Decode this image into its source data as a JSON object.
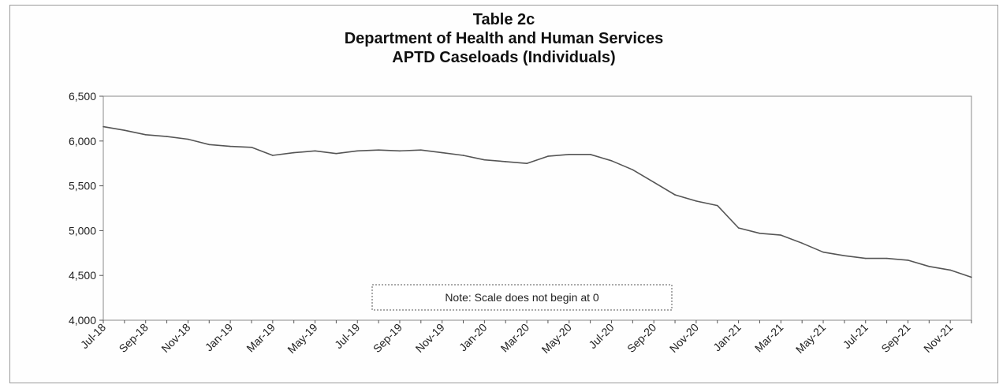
{
  "chart_data": {
    "type": "line",
    "title_lines": [
      "Table 2c",
      "Department of Health and Human Services",
      "APTD Caseloads (Individuals)"
    ],
    "xlabel": "",
    "ylabel": "",
    "ylim": [
      4000,
      6500
    ],
    "yticks": [
      4000,
      4500,
      5000,
      5500,
      6000,
      6500
    ],
    "ytick_labels": [
      "4,000",
      "4,500",
      "5,000",
      "5,500",
      "6,000",
      "6,500"
    ],
    "x": [
      "Jul-18",
      "Aug-18",
      "Sep-18",
      "Oct-18",
      "Nov-18",
      "Dec-18",
      "Jan-19",
      "Feb-19",
      "Mar-19",
      "Apr-19",
      "May-19",
      "Jun-19",
      "Jul-19",
      "Aug-19",
      "Sep-19",
      "Oct-19",
      "Nov-19",
      "Dec-19",
      "Jan-20",
      "Feb-20",
      "Mar-20",
      "Apr-20",
      "May-20",
      "Jun-20",
      "Jul-20",
      "Aug-20",
      "Sep-20",
      "Oct-20",
      "Nov-20",
      "Dec-20",
      "Jan-21",
      "Feb-21",
      "Mar-21",
      "Apr-21",
      "May-21",
      "Jun-21",
      "Jul-21",
      "Aug-21",
      "Sep-21",
      "Oct-21",
      "Nov-21",
      "Dec-21"
    ],
    "xtick_labels": [
      "Jul-18",
      "Sep-18",
      "Nov-18",
      "Jan-19",
      "Mar-19",
      "May-19",
      "Jul-19",
      "Sep-19",
      "Nov-19",
      "Jan-20",
      "Mar-20",
      "May-20",
      "Jul-20",
      "Sep-20",
      "Nov-20",
      "Jan-21",
      "Mar-21",
      "May-21",
      "Jul-21",
      "Sep-21",
      "Nov-21"
    ],
    "values": [
      6160,
      6120,
      6070,
      6050,
      6020,
      5960,
      5940,
      5930,
      5840,
      5870,
      5890,
      5860,
      5890,
      5900,
      5890,
      5900,
      5870,
      5840,
      5790,
      5770,
      5750,
      5830,
      5850,
      5850,
      5780,
      5680,
      5540,
      5400,
      5330,
      5280,
      5030,
      4970,
      4950,
      4860,
      4760,
      4720,
      4690,
      4690,
      4670,
      4600,
      4560,
      4480
    ],
    "grid": false,
    "line_color": "#555555",
    "note": "Note:  Scale does not begin at 0"
  }
}
